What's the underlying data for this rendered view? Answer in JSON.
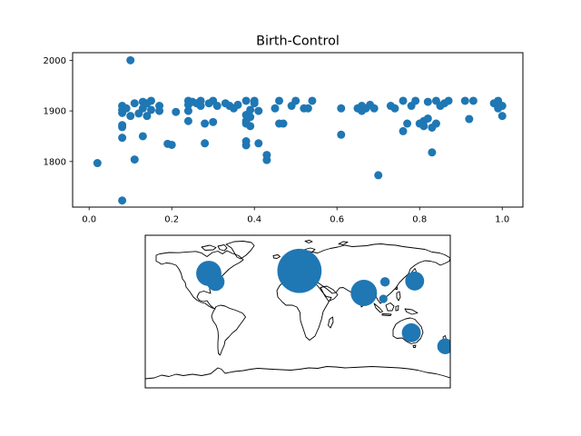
{
  "chart_data": [
    {
      "type": "scatter",
      "title": "Birth-Control",
      "xlabel": "",
      "ylabel": "",
      "xlim": [
        -0.04,
        1.05
      ],
      "ylim": [
        1710,
        2015
      ],
      "grid": false,
      "marker_color": "#1f77b4",
      "xticks": [
        0.0,
        0.2,
        0.4,
        0.6,
        0.8,
        1.0
      ],
      "xtick_labels": [
        "0.0",
        "0.2",
        "0.4",
        "0.6",
        "0.8",
        "1.0"
      ],
      "yticks": [
        1800,
        1900,
        2000
      ],
      "ytick_labels": [
        "1800",
        "1900",
        "2000"
      ],
      "points": [
        [
          0.02,
          1797
        ],
        [
          0.08,
          1723
        ],
        [
          0.08,
          1847
        ],
        [
          0.08,
          1868
        ],
        [
          0.08,
          1872
        ],
        [
          0.08,
          1896
        ],
        [
          0.08,
          1902
        ],
        [
          0.08,
          1910
        ],
        [
          0.09,
          1905
        ],
        [
          0.1,
          1890
        ],
        [
          0.1,
          2000
        ],
        [
          0.11,
          1804
        ],
        [
          0.11,
          1915
        ],
        [
          0.12,
          1895
        ],
        [
          0.13,
          1850
        ],
        [
          0.13,
          1905
        ],
        [
          0.13,
          1918
        ],
        [
          0.14,
          1890
        ],
        [
          0.14,
          1915
        ],
        [
          0.15,
          1902
        ],
        [
          0.15,
          1920
        ],
        [
          0.17,
          1910
        ],
        [
          0.17,
          1900
        ],
        [
          0.19,
          1835
        ],
        [
          0.2,
          1833
        ],
        [
          0.21,
          1898
        ],
        [
          0.24,
          1880
        ],
        [
          0.24,
          1900
        ],
        [
          0.24,
          1912
        ],
        [
          0.24,
          1920
        ],
        [
          0.25,
          1918
        ],
        [
          0.26,
          1915
        ],
        [
          0.27,
          1910
        ],
        [
          0.27,
          1920
        ],
        [
          0.28,
          1836
        ],
        [
          0.28,
          1875
        ],
        [
          0.29,
          1915
        ],
        [
          0.3,
          1878
        ],
        [
          0.3,
          1920
        ],
        [
          0.31,
          1910
        ],
        [
          0.33,
          1915
        ],
        [
          0.34,
          1910
        ],
        [
          0.35,
          1905
        ],
        [
          0.36,
          1912
        ],
        [
          0.38,
          1832
        ],
        [
          0.38,
          1840
        ],
        [
          0.38,
          1875
        ],
        [
          0.38,
          1880
        ],
        [
          0.38,
          1892
        ],
        [
          0.38,
          1920
        ],
        [
          0.39,
          1870
        ],
        [
          0.39,
          1888
        ],
        [
          0.39,
          1902
        ],
        [
          0.4,
          1915
        ],
        [
          0.4,
          1920
        ],
        [
          0.41,
          1836
        ],
        [
          0.41,
          1900
        ],
        [
          0.43,
          1803
        ],
        [
          0.43,
          1813
        ],
        [
          0.45,
          1905
        ],
        [
          0.46,
          1920
        ],
        [
          0.46,
          1875
        ],
        [
          0.47,
          1875
        ],
        [
          0.49,
          1910
        ],
        [
          0.5,
          1920
        ],
        [
          0.52,
          1905
        ],
        [
          0.53,
          1905
        ],
        [
          0.54,
          1920
        ],
        [
          0.61,
          1853
        ],
        [
          0.61,
          1905
        ],
        [
          0.65,
          1905
        ],
        [
          0.66,
          1900
        ],
        [
          0.66,
          1910
        ],
        [
          0.67,
          1905
        ],
        [
          0.68,
          1912
        ],
        [
          0.69,
          1905
        ],
        [
          0.7,
          1773
        ],
        [
          0.73,
          1910
        ],
        [
          0.74,
          1905
        ],
        [
          0.76,
          1860
        ],
        [
          0.76,
          1920
        ],
        [
          0.77,
          1875
        ],
        [
          0.78,
          1910
        ],
        [
          0.79,
          1920
        ],
        [
          0.8,
          1875
        ],
        [
          0.81,
          1880
        ],
        [
          0.81,
          1870
        ],
        [
          0.82,
          1885
        ],
        [
          0.82,
          1918
        ],
        [
          0.83,
          1867
        ],
        [
          0.83,
          1818
        ],
        [
          0.84,
          1920
        ],
        [
          0.84,
          1875
        ],
        [
          0.85,
          1910
        ],
        [
          0.86,
          1915
        ],
        [
          0.87,
          1920
        ],
        [
          0.91,
          1920
        ],
        [
          0.92,
          1884
        ],
        [
          0.93,
          1920
        ],
        [
          0.98,
          1915
        ],
        [
          0.99,
          1905
        ],
        [
          0.99,
          1920
        ],
        [
          1.0,
          1910
        ],
        [
          1.0,
          1890
        ]
      ]
    },
    {
      "type": "scatter",
      "title": "",
      "xlabel": "",
      "ylabel": "",
      "subtype": "geographic bubble map",
      "projection": "equirectangular",
      "lon_range": [
        -180,
        180
      ],
      "lat_range": [
        -90,
        90
      ],
      "marker_color": "#1f77b4",
      "points": [
        {
          "lon": -105,
          "lat": 45,
          "size": 24
        },
        {
          "lon": -97,
          "lat": 35,
          "size": 17
        },
        {
          "lon": 2,
          "lat": 48,
          "size": 42
        },
        {
          "lon": 78,
          "lat": 22,
          "size": 25
        },
        {
          "lon": 103,
          "lat": 35,
          "size": 9
        },
        {
          "lon": 101,
          "lat": 15,
          "size": 8
        },
        {
          "lon": 138,
          "lat": 36,
          "size": 18
        },
        {
          "lon": 134,
          "lat": -25,
          "size": 18
        },
        {
          "lon": 174,
          "lat": -41,
          "size": 15
        }
      ]
    }
  ]
}
